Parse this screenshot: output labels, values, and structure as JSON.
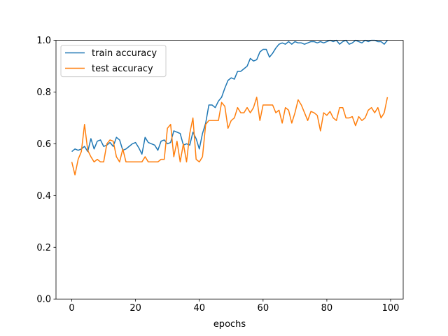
{
  "chart_data": {
    "type": "line",
    "title": "",
    "xlabel": "epochs",
    "ylabel": "",
    "xlim": [
      -4.95,
      103.95
    ],
    "ylim": [
      0.0,
      1.0
    ],
    "xticks": [
      0,
      20,
      40,
      60,
      80,
      100
    ],
    "yticks": [
      0.0,
      0.2,
      0.4,
      0.6,
      0.8,
      1.0
    ],
    "ytick_labels": [
      "0.0",
      "0.2",
      "0.4",
      "0.6",
      "0.8",
      "1.0"
    ],
    "xtick_labels": [
      "0",
      "20",
      "40",
      "60",
      "80",
      "100"
    ],
    "grid": false,
    "legend_position": "upper-left",
    "x": [
      0,
      1,
      2,
      3,
      4,
      5,
      6,
      7,
      8,
      9,
      10,
      11,
      12,
      13,
      14,
      15,
      16,
      17,
      18,
      19,
      20,
      21,
      22,
      23,
      24,
      25,
      26,
      27,
      28,
      29,
      30,
      31,
      32,
      33,
      34,
      35,
      36,
      37,
      38,
      39,
      40,
      41,
      42,
      43,
      44,
      45,
      46,
      47,
      48,
      49,
      50,
      51,
      52,
      53,
      54,
      55,
      56,
      57,
      58,
      59,
      60,
      61,
      62,
      63,
      64,
      65,
      66,
      67,
      68,
      69,
      70,
      71,
      72,
      73,
      74,
      75,
      76,
      77,
      78,
      79,
      80,
      81,
      82,
      83,
      84,
      85,
      86,
      87,
      88,
      89,
      90,
      91,
      92,
      93,
      94,
      95,
      96,
      97,
      98,
      99
    ],
    "series": [
      {
        "name": "train accuracy",
        "color": "#1f77b4",
        "values": [
          0.57,
          0.58,
          0.575,
          0.58,
          0.59,
          0.57,
          0.62,
          0.58,
          0.61,
          0.615,
          0.59,
          0.595,
          0.605,
          0.59,
          0.625,
          0.615,
          0.575,
          0.58,
          0.59,
          0.6,
          0.605,
          0.585,
          0.56,
          0.625,
          0.605,
          0.6,
          0.595,
          0.575,
          0.61,
          0.615,
          0.6,
          0.605,
          0.65,
          0.645,
          0.64,
          0.595,
          0.6,
          0.595,
          0.645,
          0.62,
          0.58,
          0.64,
          0.68,
          0.75,
          0.75,
          0.74,
          0.765,
          0.78,
          0.815,
          0.845,
          0.855,
          0.85,
          0.88,
          0.88,
          0.89,
          0.9,
          0.93,
          0.92,
          0.925,
          0.955,
          0.965,
          0.965,
          0.935,
          0.95,
          0.97,
          0.985,
          0.99,
          0.985,
          0.995,
          0.985,
          0.995,
          0.99,
          0.99,
          0.985,
          0.99,
          0.995,
          0.995,
          0.99,
          0.995,
          0.99,
          0.995,
          1.0,
          0.995,
          1.0,
          0.985,
          0.995,
          1.0,
          0.985,
          0.99,
          1.0,
          0.995,
          0.99,
          1.0,
          0.995,
          1.0,
          1.0,
          0.995,
          0.995,
          0.985,
          1.0
        ]
      },
      {
        "name": "test accuracy",
        "color": "#ff7f0e",
        "values": [
          0.53,
          0.48,
          0.54,
          0.57,
          0.675,
          0.575,
          0.55,
          0.53,
          0.54,
          0.53,
          0.53,
          0.6,
          0.615,
          0.61,
          0.55,
          0.53,
          0.58,
          0.53,
          0.53,
          0.53,
          0.53,
          0.53,
          0.53,
          0.55,
          0.53,
          0.53,
          0.53,
          0.53,
          0.54,
          0.54,
          0.66,
          0.675,
          0.55,
          0.61,
          0.53,
          0.6,
          0.53,
          0.64,
          0.7,
          0.54,
          0.53,
          0.55,
          0.675,
          0.69,
          0.69,
          0.69,
          0.69,
          0.76,
          0.745,
          0.66,
          0.69,
          0.7,
          0.74,
          0.72,
          0.72,
          0.74,
          0.72,
          0.74,
          0.78,
          0.69,
          0.75,
          0.75,
          0.75,
          0.75,
          0.72,
          0.73,
          0.68,
          0.74,
          0.73,
          0.68,
          0.72,
          0.77,
          0.75,
          0.72,
          0.69,
          0.725,
          0.72,
          0.71,
          0.65,
          0.72,
          0.71,
          0.725,
          0.7,
          0.69,
          0.74,
          0.74,
          0.7,
          0.7,
          0.705,
          0.67,
          0.705,
          0.69,
          0.7,
          0.73,
          0.74,
          0.72,
          0.74,
          0.7,
          0.72,
          0.78
        ]
      }
    ]
  }
}
